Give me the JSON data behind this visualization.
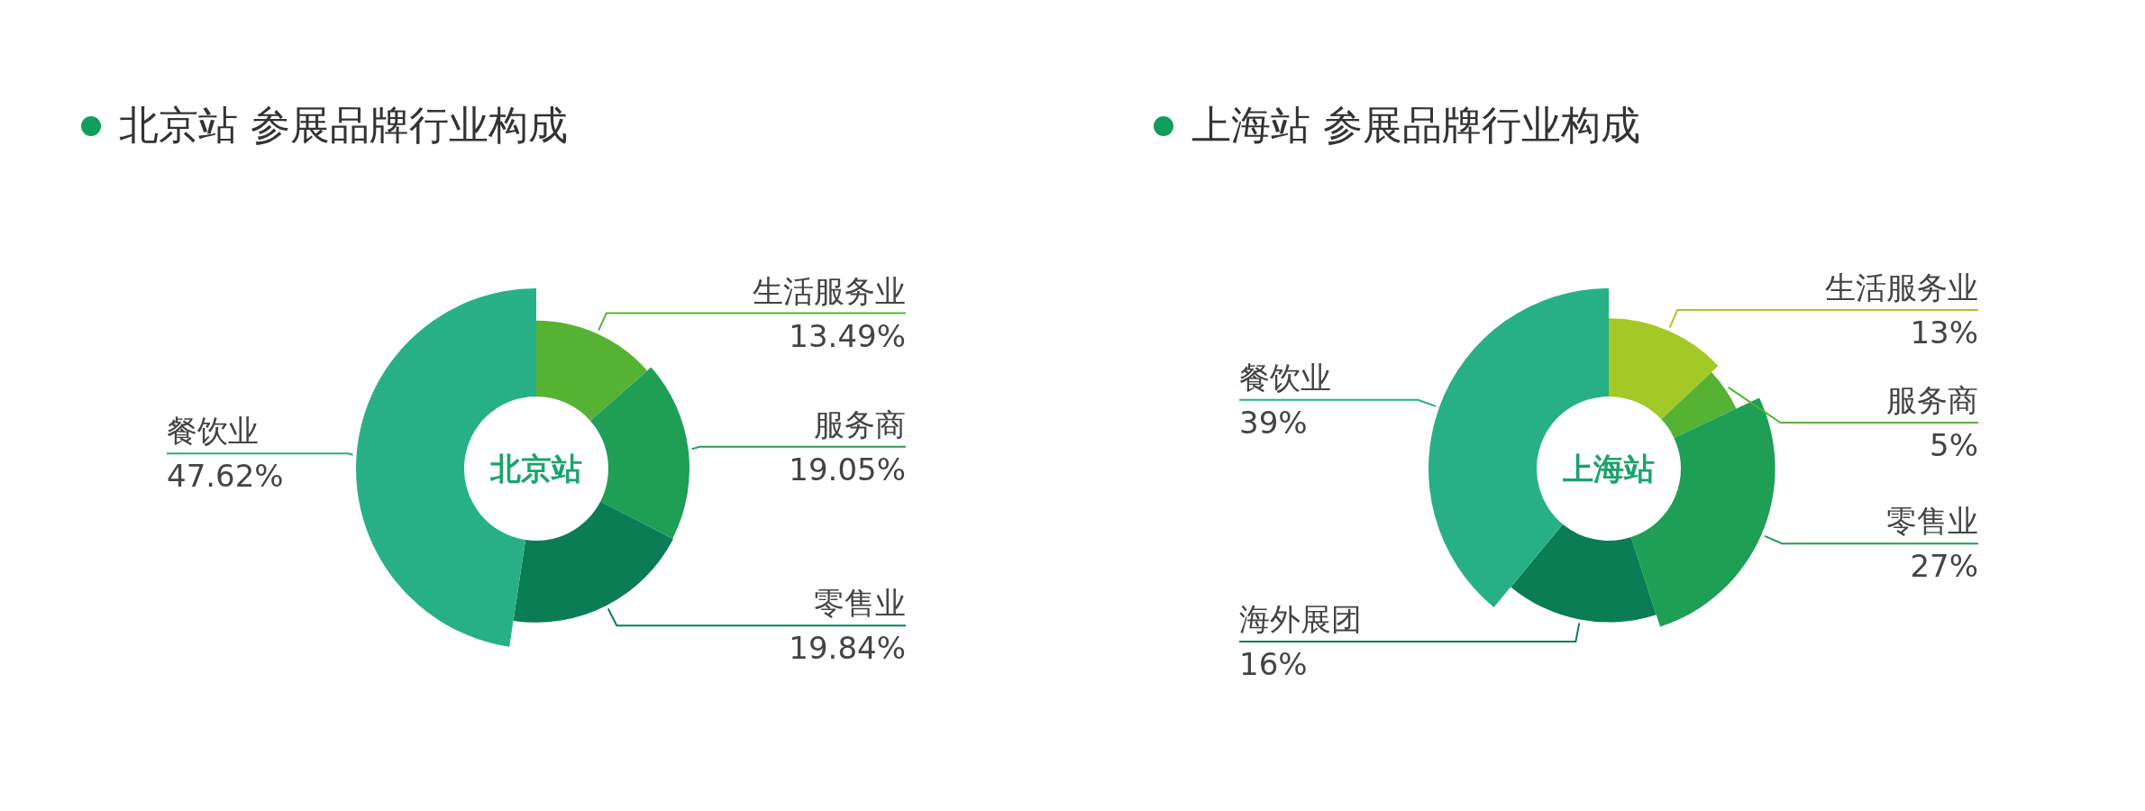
{
  "chart_data": [
    {
      "type": "donut",
      "title": "北京站 参展品牌行业构成",
      "annotations": [
        "北京站"
      ],
      "categories": [
        "生活服务业",
        "服务商",
        "零售业",
        "餐饮业"
      ],
      "values": [
        13.49,
        19.05,
        19.84,
        47.62
      ],
      "value_labels": [
        "13.49%",
        "19.05%",
        "19.84%",
        "47.62%"
      ],
      "colors": [
        "#56b233",
        "#1f9e56",
        "#0b7d55",
        "#27b086"
      ]
    },
    {
      "type": "donut",
      "title": "上海站 参展品牌行业构成",
      "annotations": [
        "上海站"
      ],
      "categories": [
        "生活服务业",
        "服务商",
        "零售业",
        "海外展团",
        "餐饮业"
      ],
      "values": [
        13,
        5,
        27,
        16,
        39
      ],
      "value_labels": [
        "13%",
        "5%",
        "27%",
        "16%",
        "39%"
      ],
      "colors": [
        "#a3c927",
        "#56b233",
        "#1f9e56",
        "#0b7d55",
        "#27b086"
      ]
    }
  ]
}
